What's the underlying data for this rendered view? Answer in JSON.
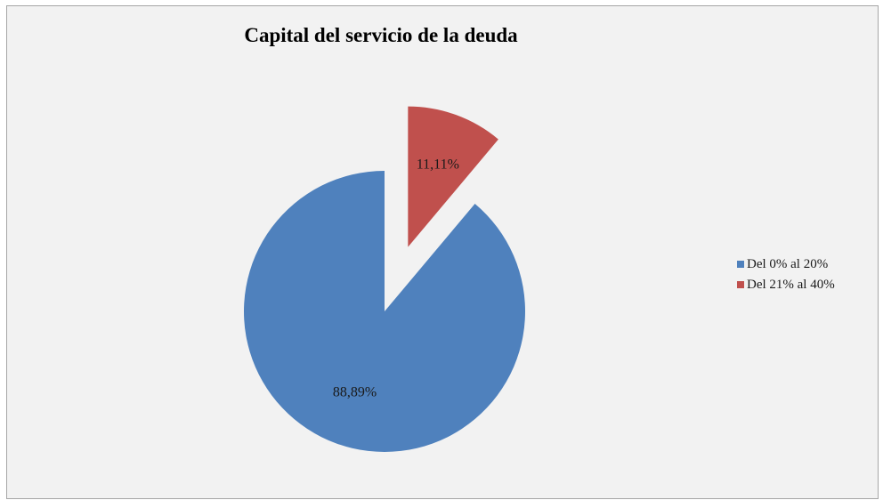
{
  "chart_data": {
    "type": "pie",
    "title": "Capital del servicio de la deuda",
    "categories": [
      "Del 0% al 20%",
      "Del 21% al 40%"
    ],
    "values": [
      88.89,
      11.11
    ],
    "data_labels": [
      "88,89%",
      "11,11%"
    ],
    "colors": [
      "#4f81bd",
      "#c0504d"
    ],
    "exploded": [
      false,
      true
    ],
    "legend_position": "right"
  }
}
